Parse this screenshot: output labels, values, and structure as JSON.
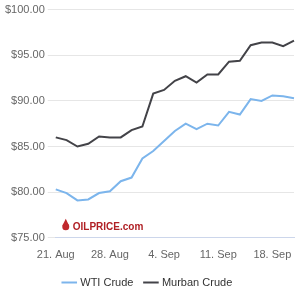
{
  "chart_data": {
    "type": "line",
    "categories": [
      "21. Aug",
      null,
      null,
      null,
      null,
      "28. Aug",
      null,
      null,
      null,
      null,
      "4. Sep",
      null,
      null,
      null,
      null,
      "11. Sep",
      null,
      null,
      null,
      null,
      "18. Sep",
      null,
      null
    ],
    "series": [
      {
        "name": "WTI Crude",
        "color": "#7cb5ec",
        "values": [
          80.3,
          79.9,
          79.1,
          79.2,
          79.9,
          80.1,
          81.2,
          81.6,
          83.7,
          84.5,
          85.6,
          86.7,
          87.5,
          86.9,
          87.5,
          87.3,
          88.8,
          88.5,
          90.2,
          90.0,
          90.6,
          90.5,
          90.3
        ]
      },
      {
        "name": "Murban Crude",
        "color": "#434348",
        "values": [
          86.0,
          85.7,
          85.0,
          85.3,
          86.1,
          86.0,
          86.0,
          86.8,
          87.2,
          90.8,
          91.2,
          92.2,
          92.7,
          92.0,
          92.9,
          92.9,
          94.3,
          94.4,
          96.1,
          96.4,
          96.4,
          96.0,
          96.6
        ]
      }
    ],
    "ylim": [
      75,
      100
    ],
    "yticks": [
      {
        "value": 75,
        "label": "$75.00"
      },
      {
        "value": 80,
        "label": "$80.00"
      },
      {
        "value": 85,
        "label": "$85.00"
      },
      {
        "value": 90,
        "label": "$90.00"
      },
      {
        "value": 95,
        "label": "$95.00"
      },
      {
        "value": 100,
        "label": "$100.00"
      }
    ],
    "grid": true,
    "legend": "bottom",
    "annotations": [
      "OILPRICE.com"
    ]
  }
}
